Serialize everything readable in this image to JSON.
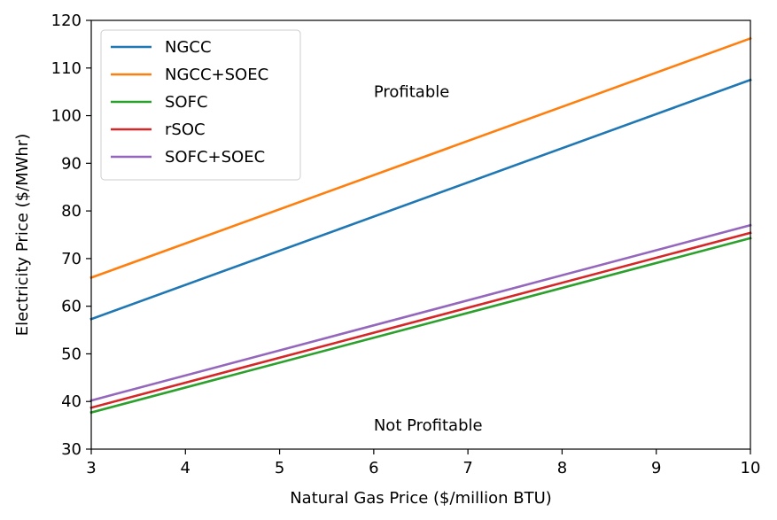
{
  "chart_data": {
    "type": "line",
    "xlabel": "Natural Gas Price ($/million BTU)",
    "ylabel": "Electricity Price ($/MWhr)",
    "xlim": [
      3,
      10
    ],
    "ylim": [
      30,
      120
    ],
    "xticks": [
      3,
      4,
      5,
      6,
      7,
      8,
      9,
      10
    ],
    "yticks": [
      30,
      40,
      50,
      60,
      70,
      80,
      90,
      100,
      110,
      120
    ],
    "grid": false,
    "legend_position": "top-left",
    "series": [
      {
        "name": "NGCC",
        "color": "#1f77b4",
        "x": [
          3,
          10
        ],
        "y": [
          57.3,
          107.5
        ]
      },
      {
        "name": "NGCC+SOEC",
        "color": "#ff7f0e",
        "x": [
          3,
          10
        ],
        "y": [
          66.0,
          116.2
        ]
      },
      {
        "name": "SOFC",
        "color": "#2ca02c",
        "x": [
          3,
          10
        ],
        "y": [
          37.7,
          74.3
        ]
      },
      {
        "name": "rSOC",
        "color": "#d62728",
        "x": [
          3,
          10
        ],
        "y": [
          38.7,
          75.4
        ]
      },
      {
        "name": "SOFC+SOEC",
        "color": "#9467bd",
        "x": [
          3,
          10
        ],
        "y": [
          40.2,
          77.0
        ]
      }
    ],
    "annotations": [
      {
        "text": "Profitable",
        "x": 6.0,
        "y": 105
      },
      {
        "text": "Not Profitable",
        "x": 6.0,
        "y": 35
      }
    ]
  }
}
